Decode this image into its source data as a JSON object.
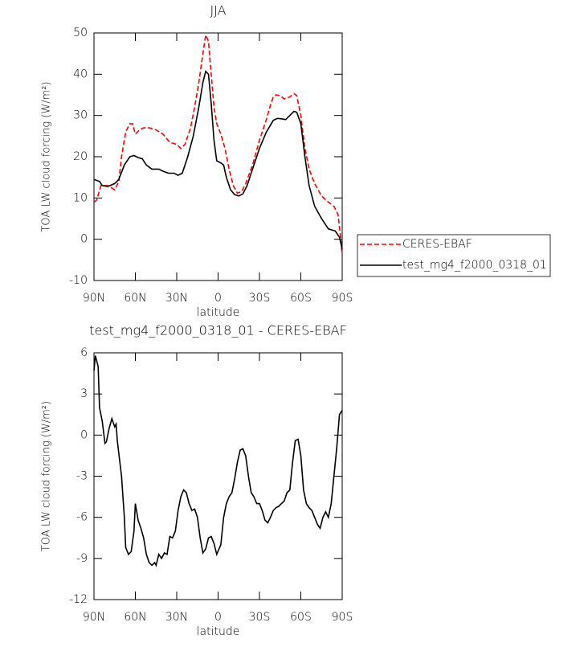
{
  "chart_data": [
    {
      "type": "line",
      "title": "JJA",
      "xlabel": "latitude",
      "ylabel": "TOA LW cloud forcing (W/m²)",
      "xlim": [
        90,
        -90
      ],
      "ylim": [
        -10,
        50
      ],
      "xticks": [
        {
          "value": 90,
          "label": "90N"
        },
        {
          "value": 60,
          "label": "60N"
        },
        {
          "value": 30,
          "label": "30N"
        },
        0,
        {
          "value": -30,
          "label": "30S"
        },
        {
          "value": -60,
          "label": "60S"
        },
        {
          "value": -90,
          "label": "90S"
        }
      ],
      "yticks": [
        -10,
        0,
        10,
        20,
        30,
        40,
        50
      ],
      "legend": "right",
      "series": [
        {
          "name": "CERES-EBAF",
          "color": "#ff0000",
          "linestyle": "dashed",
          "x": [
            90,
            88,
            85,
            80,
            75,
            72,
            70,
            67,
            64,
            62,
            60,
            57,
            54,
            50,
            45,
            40,
            35,
            30,
            27,
            24,
            20,
            17,
            14,
            11,
            9,
            7,
            5,
            3,
            1,
            -2,
            -5,
            -8,
            -11,
            -14,
            -17,
            -20,
            -25,
            -30,
            -35,
            -38,
            -40,
            -42,
            -45,
            -48,
            -52,
            -55,
            -57,
            -60,
            -63,
            -66,
            -70,
            -75,
            -80,
            -84,
            -87,
            -89,
            -90
          ],
          "values": [
            9,
            9.5,
            13,
            13,
            12,
            14,
            20,
            26,
            28,
            28,
            25.5,
            26.5,
            27,
            27,
            26.5,
            25.5,
            23.5,
            23,
            22,
            23,
            27,
            32,
            38,
            45,
            49.5,
            48,
            40,
            32,
            28,
            25.5,
            22,
            17,
            13,
            11.2,
            11.5,
            13.5,
            18,
            24,
            29,
            32.5,
            34.5,
            35,
            34.8,
            34,
            34.5,
            35.3,
            34.8,
            30,
            22,
            17,
            13.5,
            10.5,
            9,
            8,
            6,
            0,
            -4
          ]
        },
        {
          "name": "test_mg4_f2000_0318_01",
          "color": "#000000",
          "linestyle": "solid",
          "x": [
            90,
            86,
            84,
            80,
            75,
            72,
            68,
            64,
            61,
            58,
            55,
            52,
            48,
            43,
            40,
            36,
            32,
            29,
            26,
            22,
            18,
            14,
            11,
            9,
            7,
            5,
            3,
            1,
            -2,
            -4,
            -6,
            -9,
            -12,
            -15,
            -18,
            -21,
            -25,
            -30,
            -35,
            -40,
            -43,
            -46,
            -49,
            -52,
            -55,
            -57,
            -60,
            -63,
            -66,
            -70,
            -75,
            -80,
            -85,
            -88,
            -90
          ],
          "values": [
            14.5,
            14,
            13,
            12.8,
            13.5,
            14.5,
            18,
            20,
            20.3,
            19.8,
            19.5,
            18,
            17,
            17,
            16.5,
            16,
            16,
            15.5,
            16,
            20,
            25,
            32,
            38,
            40.7,
            40,
            33,
            24,
            19,
            18.5,
            18,
            15,
            12,
            10.8,
            10.5,
            11,
            13,
            17,
            22,
            26,
            28.8,
            29.3,
            29.2,
            29,
            30,
            31,
            30.8,
            28,
            20,
            13,
            8,
            5,
            2.5,
            2,
            0.5,
            -2.5
          ]
        }
      ]
    },
    {
      "type": "line",
      "title": "test_mg4_f2000_0318_01 - CERES-EBAF",
      "xlabel": "latitude",
      "ylabel": "TOA LW cloud forcing (W/m²)",
      "xlim": [
        90,
        -90
      ],
      "ylim": [
        -12,
        6
      ],
      "xticks": [
        {
          "value": 90,
          "label": "90N"
        },
        {
          "value": 60,
          "label": "60N"
        },
        {
          "value": 30,
          "label": "30N"
        },
        0,
        {
          "value": -30,
          "label": "30S"
        },
        {
          "value": -60,
          "label": "60S"
        },
        {
          "value": -90,
          "label": "90S"
        }
      ],
      "yticks": [
        -12,
        -9,
        -6,
        -3,
        0,
        3,
        6
      ],
      "series": [
        {
          "color": "#000000",
          "linestyle": "solid",
          "x": [
            90,
            89,
            87,
            86,
            84,
            82,
            81,
            79,
            77,
            75,
            74,
            73,
            70,
            68,
            67,
            65,
            63,
            61,
            60,
            58,
            56,
            54,
            52,
            50,
            48,
            46,
            45,
            43,
            41,
            39,
            37,
            35,
            33,
            31,
            29,
            27,
            25,
            23,
            21,
            19,
            17,
            15,
            13,
            11,
            9,
            7,
            5,
            3,
            1,
            -2,
            -4,
            -6,
            -8,
            -10,
            -12,
            -14,
            -16,
            -18,
            -20,
            -22,
            -24,
            -26,
            -28,
            -30,
            -32,
            -34,
            -36,
            -38,
            -40,
            -42,
            -44,
            -46,
            -48,
            -50,
            -52,
            -54,
            -56,
            -58,
            -60,
            -62,
            -64,
            -66,
            -68,
            -70,
            -72,
            -74,
            -76,
            -78,
            -80,
            -82,
            -84,
            -86,
            -88,
            -90
          ],
          "values": [
            4.7,
            5.8,
            5,
            2,
            1,
            -0.6,
            -0.5,
            0.5,
            1.2,
            0.6,
            0.8,
            -0.5,
            -3,
            -6,
            -8.2,
            -8.7,
            -8.5,
            -7,
            -5,
            -6.2,
            -6.8,
            -7.5,
            -8.7,
            -9.3,
            -9.5,
            -9.3,
            -9.5,
            -8.7,
            -9,
            -8.6,
            -8.7,
            -7.4,
            -7.5,
            -7,
            -5.5,
            -4.5,
            -4,
            -4.2,
            -5,
            -5.5,
            -5.4,
            -6,
            -7.5,
            -8.6,
            -8.3,
            -7.5,
            -7.4,
            -7.9,
            -8.7,
            -8,
            -6,
            -5,
            -4.5,
            -4.2,
            -3.2,
            -2,
            -1.1,
            -1,
            -1.5,
            -3,
            -4.2,
            -4.5,
            -5,
            -5,
            -5.5,
            -6.2,
            -6.4,
            -6,
            -5.5,
            -5.3,
            -5.2,
            -5,
            -4.8,
            -4.2,
            -4,
            -2,
            -0.4,
            -0.3,
            -1.5,
            -4,
            -5,
            -5.3,
            -5.5,
            -6,
            -6.5,
            -6.8,
            -6,
            -5.6,
            -6,
            -5,
            -3,
            -1,
            1.5,
            1.8
          ]
        }
      ]
    }
  ]
}
